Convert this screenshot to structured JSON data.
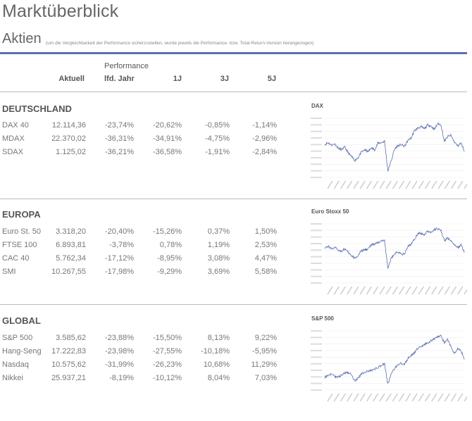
{
  "page_title": "Marktüberblick",
  "section_title": "Aktien",
  "note": "(um die Vergleichbarkeit der Performance sicherzustellen, wurde jeweils die Performance- bzw. Total-Return-Version herangezogen)",
  "header": {
    "performance": "Performance",
    "aktuell": "Aktuell",
    "lfd_jahr": "lfd. Jahr",
    "j1": "1J",
    "j3": "3J",
    "j5": "5J"
  },
  "accent_color": "#5a70b5",
  "groups": [
    {
      "title": "DEUTSCHLAND",
      "rows": [
        {
          "name": "DAX 40",
          "aktuell": "12.114,36",
          "lfd": "-23,74%",
          "j1": "-20,62%",
          "j3": "-0,85%",
          "j5": "-1,14%"
        },
        {
          "name": "MDAX",
          "aktuell": "22.370,02",
          "lfd": "-36,31%",
          "j1": "-34,91%",
          "j3": "-4,75%",
          "j5": "-2,96%"
        },
        {
          "name": "SDAX",
          "aktuell": "1.125,02",
          "lfd": "-36,21%",
          "j1": "-36,58%",
          "j3": "-1,91%",
          "j5": "-2,84%"
        }
      ]
    },
    {
      "title": "EUROPA",
      "rows": [
        {
          "name": "Euro St. 50",
          "aktuell": "3.318,20",
          "lfd": "-20,40%",
          "j1": "-15,26%",
          "j3": "0,37%",
          "j5": "1,50%"
        },
        {
          "name": "FTSE 100",
          "aktuell": "6.893,81",
          "lfd": "-3,78%",
          "j1": "0,78%",
          "j3": "1,19%",
          "j5": "2,53%"
        },
        {
          "name": "CAC 40",
          "aktuell": "5.762,34",
          "lfd": "-17,12%",
          "j1": "-8,95%",
          "j3": "3,08%",
          "j5": "4,47%"
        },
        {
          "name": "SMI",
          "aktuell": "10.267,55",
          "lfd": "-17,98%",
          "j1": "-9,29%",
          "j3": "3,69%",
          "j5": "5,58%"
        }
      ]
    },
    {
      "title": "GLOBAL",
      "rows": [
        {
          "name": "S&P 500",
          "aktuell": "3.585,62",
          "lfd": "-23,88%",
          "j1": "-15,50%",
          "j3": "8,13%",
          "j5": "9,22%"
        },
        {
          "name": "Hang-Seng",
          "aktuell": "17.222,83",
          "lfd": "-23,98%",
          "j1": "-27,55%",
          "j3": "-10,18%",
          "j5": "-5,95%"
        },
        {
          "name": "Nasdaq",
          "aktuell": "10.575,62",
          "lfd": "-31,99%",
          "j1": "-26,23%",
          "j3": "10,68%",
          "j5": "11,29%"
        },
        {
          "name": "Nikkei",
          "aktuell": "25.937,21",
          "lfd": "-8,19%",
          "j1": "-10,12%",
          "j3": "8,04%",
          "j5": "7,03%"
        }
      ]
    }
  ],
  "chart_data": [
    {
      "type": "line",
      "title": "DAX",
      "ylim": [
        8000,
        17000
      ],
      "grid": true,
      "color": "#5a70b5",
      "values": [
        13000,
        13300,
        12900,
        13100,
        12500,
        12200,
        12600,
        11800,
        11200,
        10600,
        11000,
        11800,
        12200,
        11900,
        12500,
        12200,
        13200,
        13300,
        13500,
        9000,
        10500,
        12300,
        12800,
        13000,
        12700,
        13600,
        14000,
        15100,
        15500,
        15700,
        15400,
        16000,
        15800,
        15300,
        16200,
        16000,
        13500,
        14200,
        14400,
        13400,
        12800,
        13200,
        12100
      ]
    },
    {
      "type": "line",
      "title": "Euro Stoxx 50",
      "ylim": [
        2000,
        4500
      ],
      "grid": true,
      "color": "#5a70b5",
      "values": [
        3500,
        3550,
        3450,
        3500,
        3400,
        3350,
        3450,
        3300,
        3150,
        3050,
        3150,
        3350,
        3400,
        3450,
        3600,
        3650,
        3700,
        3750,
        3850,
        2600,
        3050,
        3250,
        3300,
        3250,
        3200,
        3550,
        3650,
        3850,
        4100,
        4100,
        4050,
        4200,
        4150,
        4250,
        4300,
        4200,
        3800,
        3900,
        3800,
        3600,
        3500,
        3600,
        3320
      ]
    },
    {
      "type": "line",
      "title": "S&P 500",
      "ylim": [
        2000,
        5000
      ],
      "grid": true,
      "color": "#5a70b5",
      "values": [
        2650,
        2750,
        2800,
        2700,
        2650,
        2750,
        2850,
        2900,
        2800,
        2450,
        2600,
        2800,
        2900,
        2950,
        3000,
        3050,
        3150,
        3250,
        3350,
        2300,
        2800,
        3100,
        3250,
        3350,
        3300,
        3600,
        3750,
        3900,
        4100,
        4200,
        4300,
        4400,
        4500,
        4600,
        4700,
        4750,
        4400,
        4550,
        4200,
        3850,
        4100,
        4000,
        3580
      ]
    }
  ]
}
